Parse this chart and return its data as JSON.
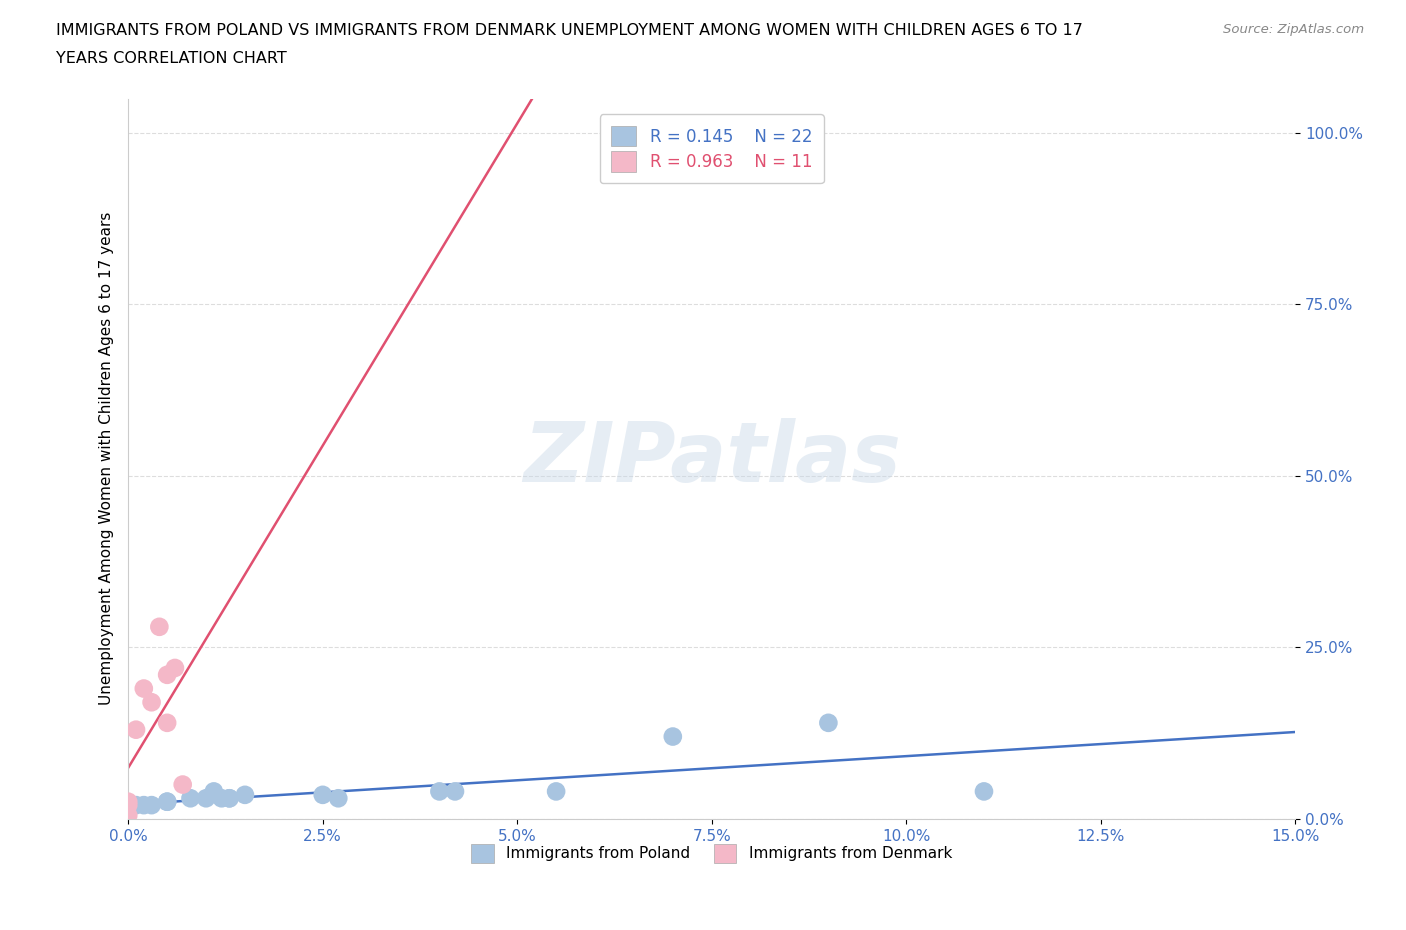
{
  "title_line1": "IMMIGRANTS FROM POLAND VS IMMIGRANTS FROM DENMARK UNEMPLOYMENT AMONG WOMEN WITH CHILDREN AGES 6 TO 17",
  "title_line2": "YEARS CORRELATION CHART",
  "source": "Source: ZipAtlas.com",
  "ylabel": "Unemployment Among Women with Children Ages 6 to 17 years",
  "xlim": [
    0.0,
    0.15
  ],
  "ylim": [
    0.0,
    1.05
  ],
  "xticks": [
    0.0,
    0.025,
    0.05,
    0.075,
    0.1,
    0.125,
    0.15
  ],
  "xtick_labels": [
    "0.0%",
    "2.5%",
    "5.0%",
    "7.5%",
    "10.0%",
    "12.5%",
    "15.0%"
  ],
  "yticks": [
    0.0,
    0.25,
    0.5,
    0.75,
    1.0
  ],
  "ytick_labels": [
    "0.0%",
    "25.0%",
    "50.0%",
    "75.0%",
    "100.0%"
  ],
  "poland_R": 0.145,
  "poland_N": 22,
  "denmark_R": 0.963,
  "denmark_N": 11,
  "poland_color": "#a8c4e0",
  "denmark_color": "#f4b8c8",
  "poland_line_color": "#4472c4",
  "denmark_line_color": "#e05070",
  "poland_x": [
    0.0,
    0.0,
    0.001,
    0.002,
    0.003,
    0.005,
    0.005,
    0.008,
    0.01,
    0.011,
    0.012,
    0.013,
    0.013,
    0.015,
    0.025,
    0.027,
    0.04,
    0.042,
    0.055,
    0.07,
    0.09,
    0.11
  ],
  "poland_y": [
    0.015,
    0.02,
    0.02,
    0.02,
    0.02,
    0.025,
    0.025,
    0.03,
    0.03,
    0.04,
    0.03,
    0.03,
    0.03,
    0.035,
    0.035,
    0.03,
    0.04,
    0.04,
    0.04,
    0.12,
    0.14,
    0.04
  ],
  "denmark_x": [
    0.0,
    0.0,
    0.0,
    0.001,
    0.002,
    0.003,
    0.004,
    0.005,
    0.005,
    0.006,
    0.007
  ],
  "denmark_y": [
    0.005,
    0.02,
    0.025,
    0.13,
    0.19,
    0.17,
    0.28,
    0.14,
    0.21,
    0.22,
    0.05
  ],
  "watermark_line1": "ZIP",
  "watermark_line2": "atlas",
  "background_color": "#ffffff",
  "grid_color": "#dddddd",
  "tick_color": "#4472c4"
}
